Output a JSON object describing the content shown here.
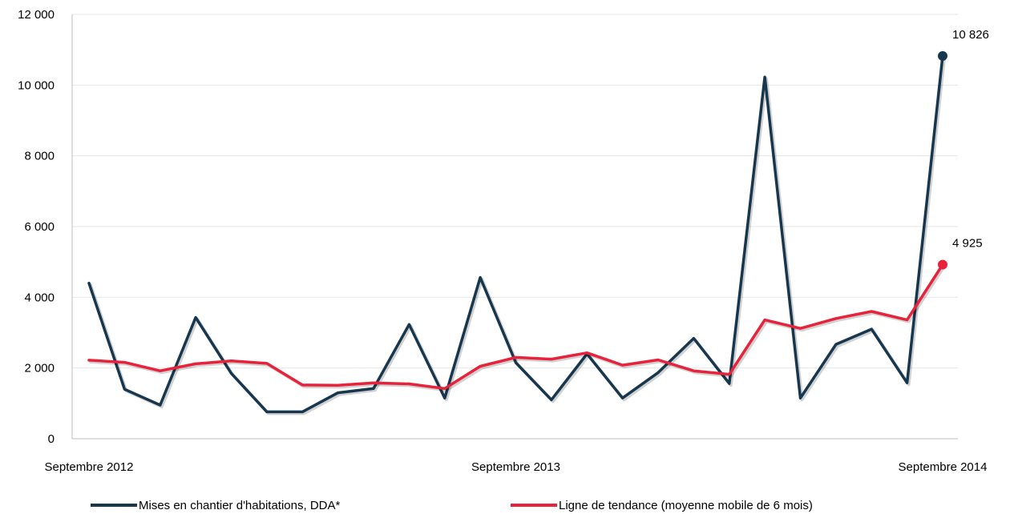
{
  "chart_data": {
    "type": "line",
    "x": [
      "Septembre 2012",
      "",
      "",
      "",
      "",
      "",
      "",
      "",
      "",
      "",
      "",
      "",
      "Septembre 2013",
      "",
      "",
      "",
      "",
      "",
      "",
      "",
      "",
      "",
      "",
      "",
      "Septembre 2014"
    ],
    "x_tick_labels": [
      "Septembre 2012",
      "Septembre 2013",
      "Septembre 2014"
    ],
    "ylim": [
      0,
      12000
    ],
    "y_ticks": [
      0,
      2000,
      4000,
      6000,
      8000,
      10000,
      12000
    ],
    "y_tick_labels": [
      "0",
      "2 000",
      "4 000",
      "6 000",
      "8 000",
      "10 000",
      "12 000"
    ],
    "grid": true,
    "legend_position": "bottom",
    "series": [
      {
        "name": "Mises en chantier d'habitations, DDA*",
        "color": "#17374f",
        "values": [
          4400,
          1400,
          950,
          3430,
          1850,
          760,
          760,
          1300,
          1420,
          3230,
          1150,
          4560,
          2150,
          1100,
          2400,
          1150,
          1870,
          2840,
          1560,
          10230,
          1150,
          2670,
          3100,
          1580,
          10826
        ],
        "end_label": "10 826"
      },
      {
        "name": "Ligne de tendance (moyenne mobile de 6 mois)",
        "color": "#e8223a",
        "values": [
          2220,
          2160,
          1920,
          2120,
          2200,
          2130,
          1520,
          1510,
          1580,
          1550,
          1420,
          2050,
          2300,
          2250,
          2430,
          2080,
          2230,
          1920,
          1820,
          3360,
          3120,
          3400,
          3600,
          3360,
          4925
        ],
        "end_label": "4 925"
      }
    ]
  }
}
